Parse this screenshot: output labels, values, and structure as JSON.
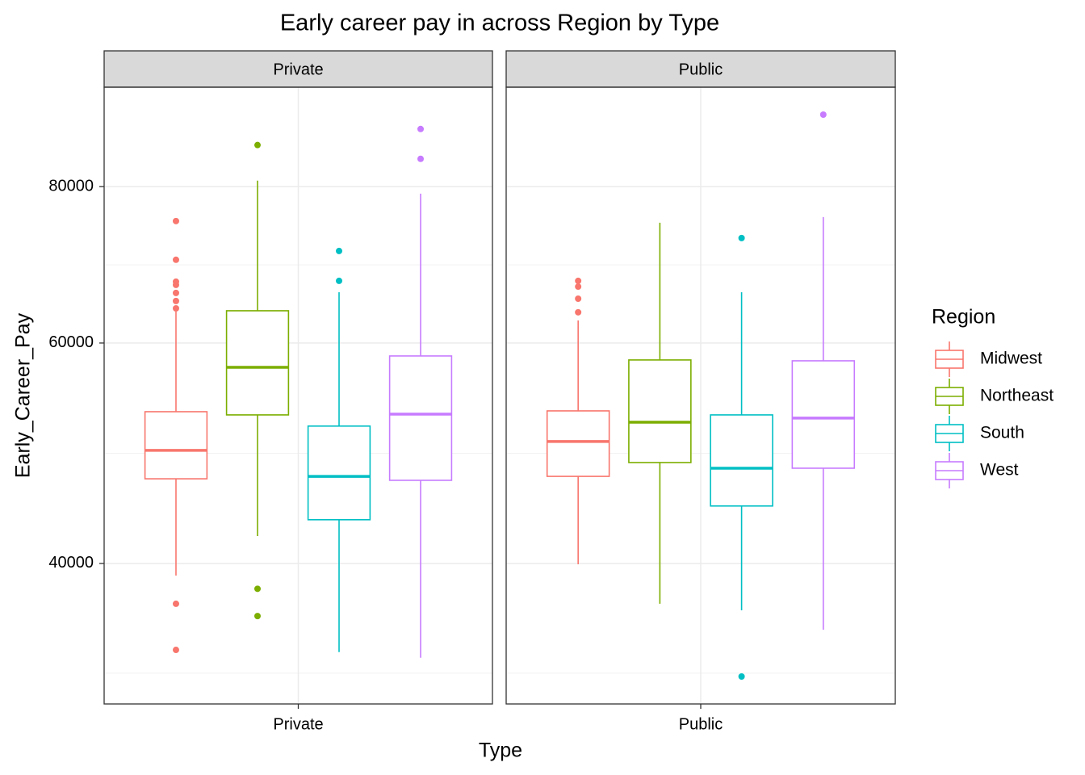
{
  "chart_data": {
    "type": "boxplot",
    "title": "Early career pay in across Region by Type",
    "xlabel": "Type",
    "ylabel": "Early_Career_Pay",
    "legend_title": "Region",
    "legend": "right",
    "ylog": true,
    "grid": true,
    "ylim": [
      30890,
      96060
    ],
    "yticks": [
      40000,
      60000,
      80000
    ],
    "yminor": [
      32690,
      48990,
      69280
    ],
    "categories": [
      "Private",
      "Public"
    ],
    "series": [
      {
        "name": "Midwest",
        "color": "#F8766D",
        "boxes": [
          {
            "whislo": 39120,
            "q1": 46740,
            "med": 49250,
            "q3": 52880,
            "whishi": 63580,
            "outliers": [
              75090,
              69930,
              67170,
              66770,
              65790,
              64820,
              63950,
              37140,
              34120
            ]
          },
          {
            "whislo": 39940,
            "q1": 46950,
            "med": 50060,
            "q3": 52960,
            "whishi": 62550,
            "outliers": [
              67270,
              66560,
              65100,
              63490
            ]
          }
        ]
      },
      {
        "name": "Northeast",
        "color": "#7CAE00",
        "boxes": [
          {
            "whislo": 42070,
            "q1": 52570,
            "med": 57380,
            "q3": 63670,
            "whishi": 80890,
            "outliers": [
              86360,
              38180,
              36310
            ]
          },
          {
            "whislo": 37140,
            "q1": 48160,
            "med": 51870,
            "q3": 58160,
            "whishi": 74860,
            "outliers": []
          }
        ]
      },
      {
        "name": "South",
        "color": "#00BFC4",
        "boxes": [
          {
            "whislo": 33980,
            "q1": 43350,
            "med": 46950,
            "q3": 51500,
            "whishi": 65880,
            "outliers": [
              71070,
              67270
            ]
          },
          {
            "whislo": 36700,
            "q1": 44460,
            "med": 47660,
            "q3": 52570,
            "whishi": 65880,
            "outliers": [
              72780,
              32490
            ]
          }
        ]
      },
      {
        "name": "West",
        "color": "#C77CFF",
        "boxes": [
          {
            "whislo": 33630,
            "q1": 46610,
            "med": 52640,
            "q3": 58590,
            "whishi": 78970,
            "outliers": [
              88950,
              84200
            ]
          },
          {
            "whislo": 35410,
            "q1": 47660,
            "med": 52260,
            "q3": 58070,
            "whishi": 75640,
            "outliers": [
              91330
            ]
          }
        ]
      }
    ]
  }
}
